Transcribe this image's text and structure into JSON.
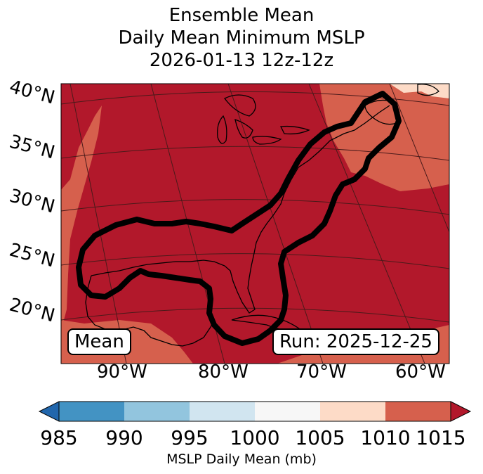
{
  "title": {
    "line1": "Ensemble Mean",
    "line2": "Daily Mean Minimum MSLP",
    "line3": "2026-01-13 12z-12z"
  },
  "map": {
    "lat_labels": [
      "40°N",
      "35°N",
      "30°N",
      "25°N",
      "20°N"
    ],
    "lon_labels": [
      "90°W",
      "80°W",
      "70°W",
      "60°W"
    ],
    "mean_label": "Mean",
    "run_label": "Run: 2025-12-25",
    "background_color": "#b2182b"
  },
  "colorbar": {
    "label": "MSLP Daily Mean (mb)",
    "ticks": [
      "985",
      "990",
      "995",
      "1000",
      "1005",
      "1010",
      "1015"
    ],
    "colors": [
      "#2166ac",
      "#4393c3",
      "#92c5de",
      "#d1e5f0",
      "#f7f7f7",
      "#fddbc7",
      "#d6604d",
      "#b2182b"
    ]
  }
}
